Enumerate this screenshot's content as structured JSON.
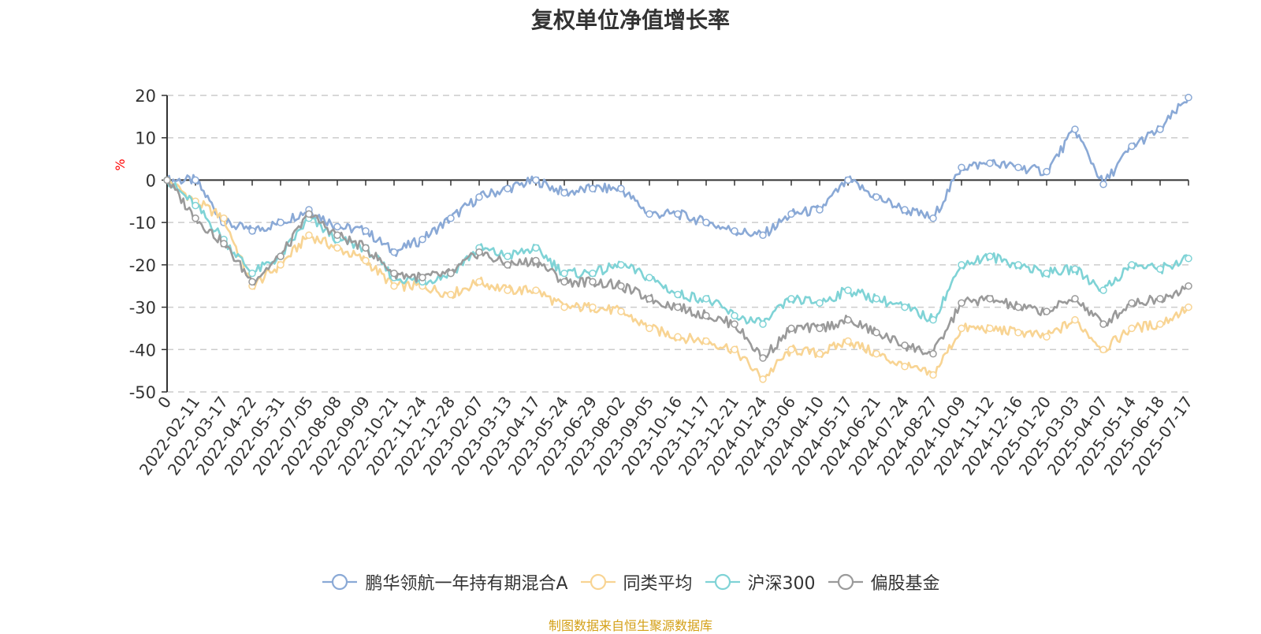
{
  "title": "复权单位净值增长率",
  "source": "制图数据来自恒生聚源数据库",
  "colors": {
    "fund": "#8aa9d6",
    "peer_avg": "#f8d493",
    "hs300": "#7fd3d6",
    "stock_fund": "#9a9a9a",
    "axis_unit": "#ff0000",
    "source": "#d4a017"
  },
  "chart_data": {
    "type": "line",
    "ylabel": "%",
    "ylim": [
      -50,
      20
    ],
    "yticks": [
      20,
      10,
      0,
      -10,
      -20,
      -30,
      -40,
      -50
    ],
    "grid": true,
    "legend_position": "bottom",
    "x_tick_labels": [
      "0",
      "2022-02-11",
      "2022-03-17",
      "2022-04-22",
      "2022-05-31",
      "2022-07-05",
      "2022-08-08",
      "2022-09-09",
      "2022-10-21",
      "2022-11-24",
      "2022-12-28",
      "2023-02-07",
      "2023-03-13",
      "2023-04-17",
      "2023-05-24",
      "2023-06-29",
      "2023-08-02",
      "2023-09-05",
      "2023-10-16",
      "2023-11-17",
      "2023-12-21",
      "2024-01-24",
      "2024-03-06",
      "2024-04-10",
      "2024-05-17",
      "2024-06-21",
      "2024-07-24",
      "2024-08-27",
      "2024-10-09",
      "2024-11-12",
      "2024-12-16",
      "2025-01-20",
      "2025-03-03",
      "2025-04-07",
      "2025-05-14",
      "2025-06-18",
      "2025-07-17"
    ],
    "series": [
      {
        "name": "鹏华领航一年持有期混合A",
        "values": [
          0,
          0,
          -10,
          -12,
          -10,
          -7,
          -11,
          -12,
          -17,
          -14,
          -9,
          -4,
          -2,
          0,
          -3,
          -2,
          -2,
          -8,
          -8,
          -10,
          -12,
          -13,
          -8,
          -7,
          0,
          -4,
          -7,
          -9,
          3,
          4,
          3,
          2,
          12,
          -1,
          8,
          12,
          19.5
        ]
      },
      {
        "name": "同类平均",
        "values": [
          0,
          -5,
          -9,
          -25,
          -20,
          -13,
          -16,
          -19,
          -25,
          -25,
          -27,
          -24,
          -26,
          -26,
          -30,
          -30,
          -31,
          -35,
          -37,
          -38,
          -40,
          -47,
          -40,
          -41,
          -38,
          -41,
          -44,
          -46,
          -35,
          -35,
          -36,
          -37,
          -33,
          -40,
          -35,
          -34,
          -30
        ]
      },
      {
        "name": "沪深300",
        "values": [
          0,
          -6,
          -14,
          -22,
          -18,
          -9,
          -14,
          -16,
          -23,
          -24,
          -22,
          -16,
          -18,
          -16,
          -22,
          -22,
          -20,
          -23,
          -27,
          -28,
          -32,
          -34,
          -28,
          -29,
          -26,
          -28,
          -30,
          -33,
          -20,
          -18,
          -20,
          -22,
          -21,
          -26,
          -20,
          -21,
          -18.5
        ]
      },
      {
        "name": "偏股基金",
        "values": [
          0,
          -9,
          -15,
          -24,
          -18,
          -8,
          -13,
          -16,
          -22,
          -23,
          -22,
          -17,
          -20,
          -19,
          -24,
          -24,
          -25,
          -28,
          -30,
          -32,
          -34,
          -42,
          -35,
          -35,
          -33,
          -36,
          -39,
          -41,
          -29,
          -28,
          -30,
          -31,
          -28,
          -34,
          -29,
          -28,
          -25
        ]
      }
    ]
  }
}
